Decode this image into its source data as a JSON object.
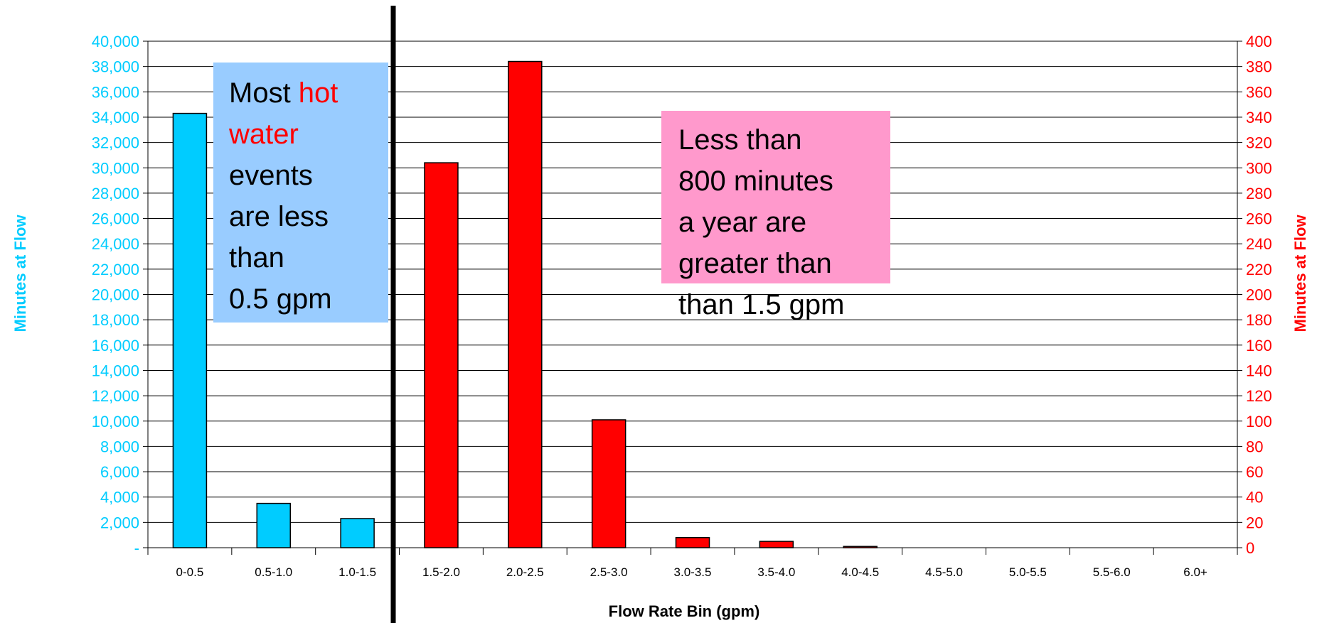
{
  "chart_data": {
    "type": "bar",
    "categories": [
      "0-0.5",
      "0.5-1.0",
      "1.0-1.5",
      "1.5-2.0",
      "2.0-2.5",
      "2.5-3.0",
      "3.0-3.5",
      "3.5-4.0",
      "4.0-4.5",
      "4.5-5.0",
      "5.0-5.5",
      "5.5-6.0",
      "6.0+"
    ],
    "series": [
      {
        "axis": "left",
        "color": "#00CCFF",
        "values": [
          34300,
          3500,
          2300,
          null,
          null,
          null,
          null,
          null,
          null,
          null,
          null,
          null,
          null
        ]
      },
      {
        "axis": "right",
        "color": "#FF0000",
        "values": [
          null,
          null,
          null,
          304,
          384,
          101,
          8,
          5,
          1,
          0,
          0,
          0,
          0
        ]
      }
    ],
    "xlabel": "Flow Rate Bin (gpm)",
    "ylabel_left": "Minutes at Flow",
    "ylabel_right": "Minutes at Flow",
    "ylim_left": [
      0,
      40000
    ],
    "ylim_right": [
      0,
      400
    ],
    "yticks_left": [
      "-",
      "2,000",
      "4,000",
      "6,000",
      "8,000",
      "10,000",
      "12,000",
      "14,000",
      "16,000",
      "18,000",
      "20,000",
      "22,000",
      "24,000",
      "26,000",
      "28,000",
      "30,000",
      "32,000",
      "34,000",
      "36,000",
      "38,000",
      "40,000"
    ],
    "yticks_right": [
      "0",
      "20",
      "40",
      "60",
      "80",
      "100",
      "120",
      "140",
      "160",
      "180",
      "200",
      "220",
      "240",
      "260",
      "280",
      "300",
      "320",
      "340",
      "360",
      "380",
      "400"
    ],
    "grid": true,
    "divider_between": [
      "1.0-1.5",
      "1.5-2.0"
    ]
  },
  "annotations": {
    "left_box": {
      "line1_a": "Most ",
      "line1_b": "hot",
      "line2": "water",
      "line3": "events",
      "line4": "are less",
      "line5": "than",
      "line6": "0.5 gpm",
      "fill": "#99CCFF",
      "highlight_color": "#FF0000"
    },
    "right_box": {
      "line1": "Less than",
      "line2": "800 minutes",
      "line3": "a year are",
      "line4": "greater than",
      "line5": "than 1.5 gpm",
      "fill": "#FF99CC"
    }
  }
}
